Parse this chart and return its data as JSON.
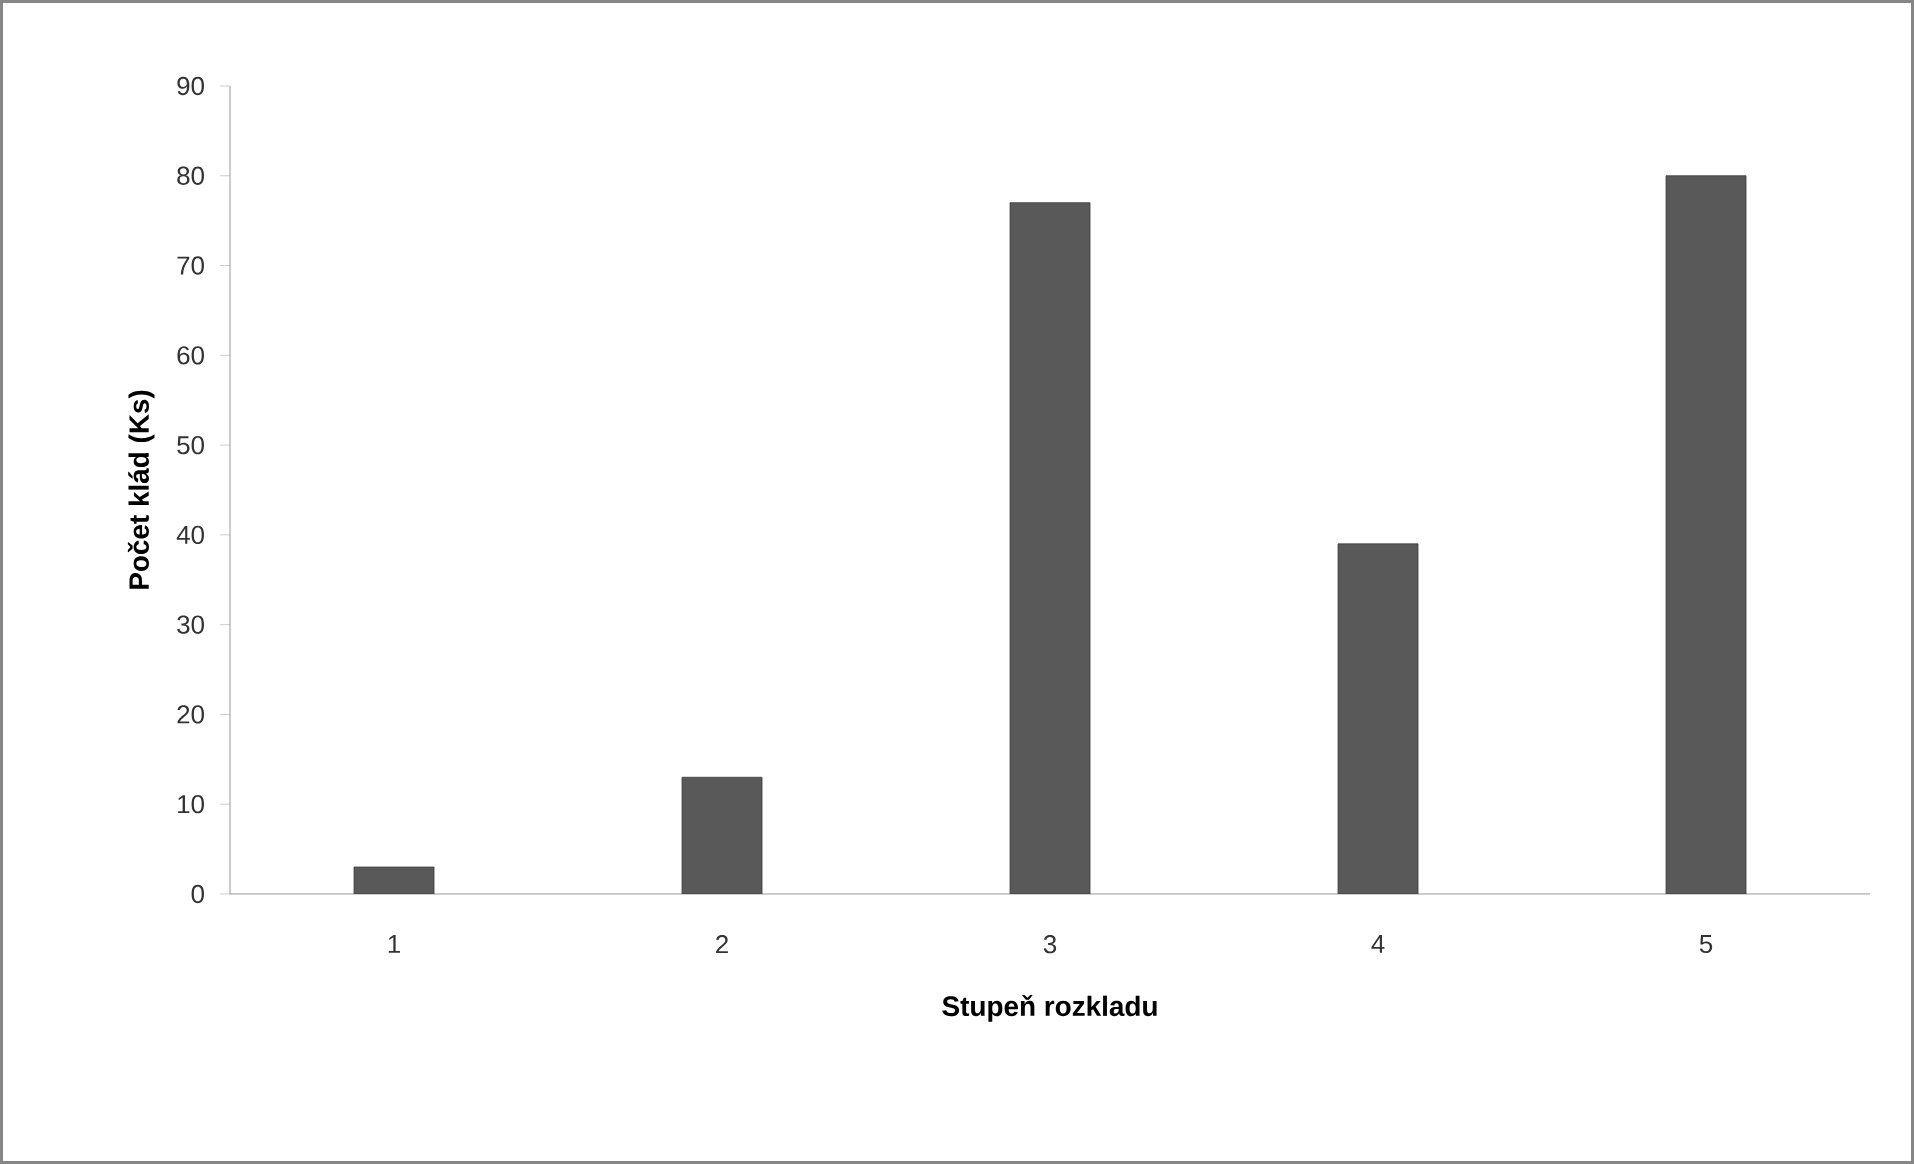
{
  "chart_data": {
    "type": "bar",
    "xlabel": "Stupeň rozkladu",
    "ylabel": "Počet klád (Ks)",
    "categories": [
      "1",
      "2",
      "3",
      "4",
      "5"
    ],
    "values": [
      3,
      13,
      77,
      39,
      80
    ],
    "color": "#595959",
    "ylim": [
      0,
      90
    ],
    "yticks": [
      0,
      10,
      20,
      30,
      40,
      50,
      60,
      70,
      80,
      90
    ]
  }
}
